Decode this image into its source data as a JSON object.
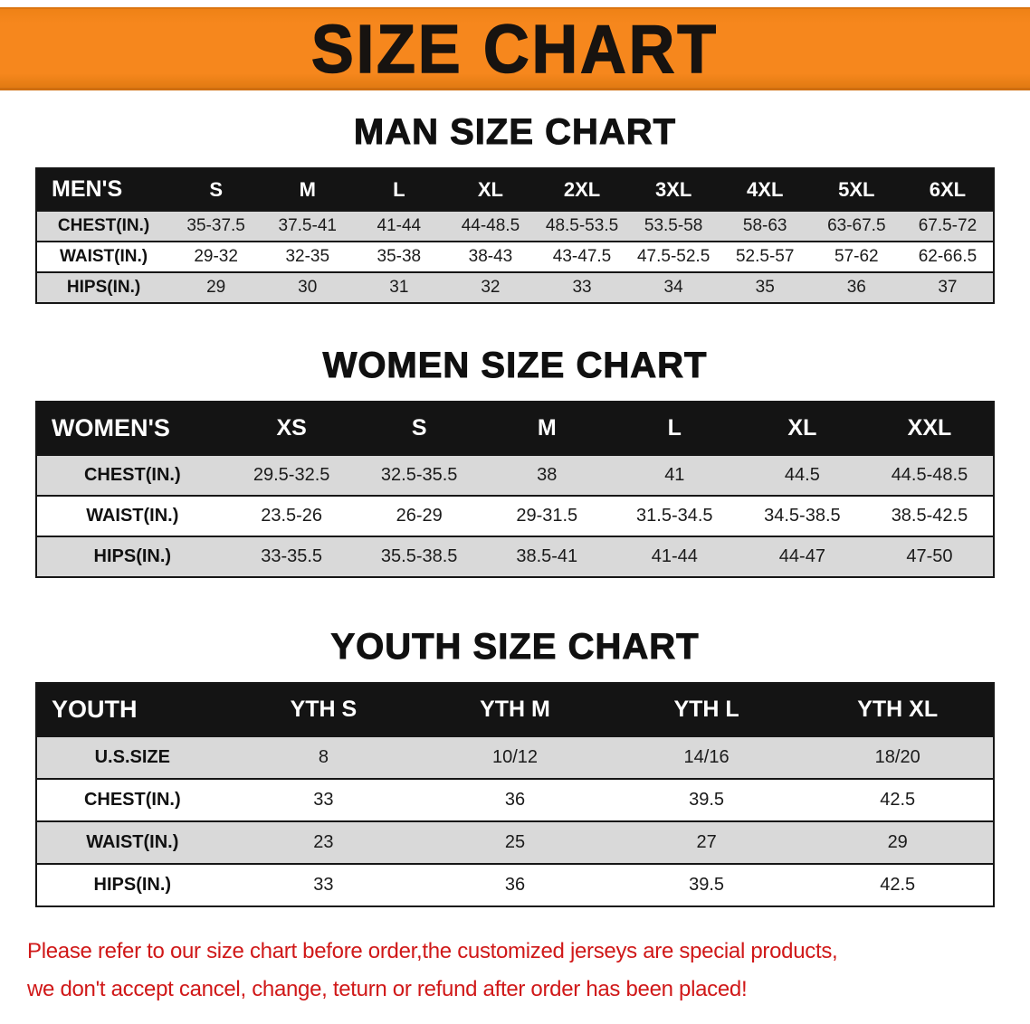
{
  "colors": {
    "banner_bg": "#F6871D",
    "banner_text": "#171310",
    "table_header_bg": "#141414",
    "table_header_text": "#ffffff",
    "row_shade": "#d9d9d9",
    "row_white": "#ffffff",
    "footer_text": "#d01818"
  },
  "banner": {
    "title": "SIZE CHART"
  },
  "sections": [
    {
      "id": "men",
      "heading": "MAN SIZE CHART",
      "table": {
        "header": [
          "MEN'S",
          "S",
          "M",
          "L",
          "XL",
          "2XL",
          "3XL",
          "4XL",
          "5XL",
          "6XL"
        ],
        "rows": [
          [
            "CHEST(IN.)",
            "35-37.5",
            "37.5-41",
            "41-44",
            "44-48.5",
            "48.5-53.5",
            "53.5-58",
            "58-63",
            "63-67.5",
            "67.5-72"
          ],
          [
            "WAIST(IN.)",
            "29-32",
            "32-35",
            "35-38",
            "38-43",
            "43-47.5",
            "47.5-52.5",
            "52.5-57",
            "57-62",
            "62-66.5"
          ],
          [
            "HIPS(IN.)",
            "29",
            "30",
            "31",
            "32",
            "33",
            "34",
            "35",
            "36",
            "37"
          ]
        ]
      }
    },
    {
      "id": "women",
      "heading": "WOMEN SIZE CHART",
      "table": {
        "header": [
          "WOMEN'S",
          "XS",
          "S",
          "M",
          "L",
          "XL",
          "XXL"
        ],
        "rows": [
          [
            "CHEST(IN.)",
            "29.5-32.5",
            "32.5-35.5",
            "38",
            "41",
            "44.5",
            "44.5-48.5"
          ],
          [
            "WAIST(IN.)",
            "23.5-26",
            "26-29",
            "29-31.5",
            "31.5-34.5",
            "34.5-38.5",
            "38.5-42.5"
          ],
          [
            "HIPS(IN.)",
            "33-35.5",
            "35.5-38.5",
            "38.5-41",
            "41-44",
            "44-47",
            "47-50"
          ]
        ]
      }
    },
    {
      "id": "youth",
      "heading": "YOUTH SIZE CHART",
      "table": {
        "header": [
          "YOUTH",
          "YTH S",
          "YTH M",
          "YTH L",
          "YTH XL"
        ],
        "rows": [
          [
            "U.S.SIZE",
            "8",
            "10/12",
            "14/16",
            "18/20"
          ],
          [
            "CHEST(IN.)",
            "33",
            "36",
            "39.5",
            "42.5"
          ],
          [
            "WAIST(IN.)",
            "23",
            "25",
            "27",
            "29"
          ],
          [
            "HIPS(IN.)",
            "33",
            "36",
            "39.5",
            "42.5"
          ]
        ]
      }
    }
  ],
  "footer": {
    "lines": [
      "Please refer to our size chart before order,the customized jerseys are special products,",
      "we don't accept cancel, change, teturn or refund after order has been placed!"
    ]
  }
}
